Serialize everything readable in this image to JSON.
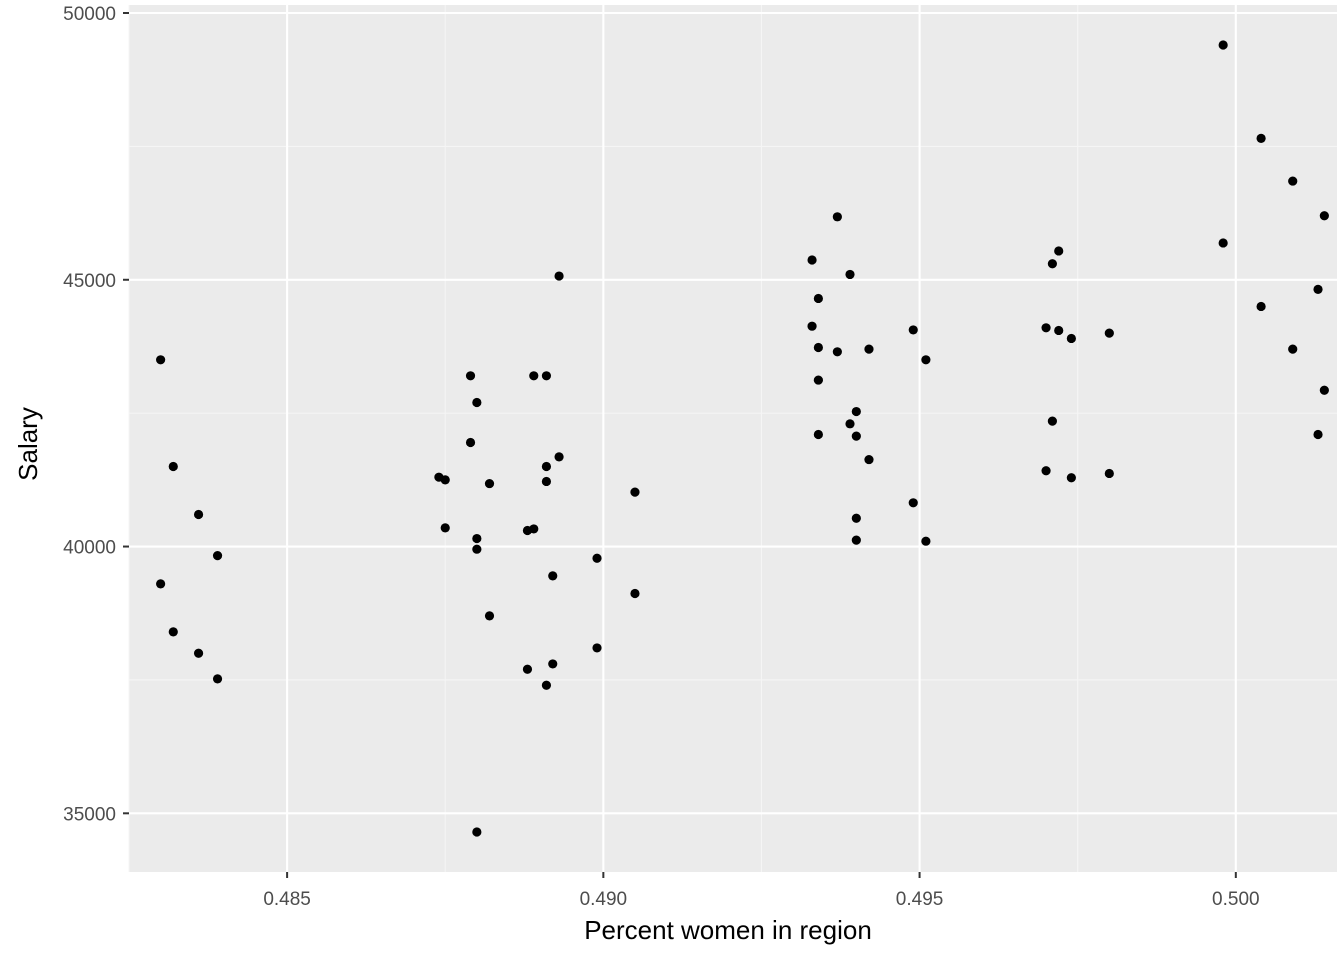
{
  "chart_data": {
    "type": "scatter",
    "title": "",
    "xlabel": "Percent women in region",
    "ylabel": "Salary",
    "xlim": [
      0.4825,
      0.5016
    ],
    "ylim": [
      33900,
      50150
    ],
    "x_ticks": [
      0.485,
      0.49,
      0.495,
      0.5
    ],
    "x_tick_labels": [
      "0.485",
      "0.490",
      "0.495",
      "0.500"
    ],
    "y_ticks": [
      35000,
      40000,
      45000,
      50000
    ],
    "y_tick_labels": [
      "35000",
      "40000",
      "45000",
      "50000"
    ],
    "grid": true,
    "legend": "none",
    "colors": {
      "panel": "#ebebeb",
      "grid_major": "#ffffff",
      "grid_minor": "#f5f5f5",
      "point": "#000000",
      "tick_label": "#4d4d4d",
      "tick_mark": "#333333"
    },
    "points": [
      {
        "x": 0.483,
        "y": 43500
      },
      {
        "x": 0.4832,
        "y": 41500
      },
      {
        "x": 0.4836,
        "y": 40600
      },
      {
        "x": 0.4839,
        "y": 39830
      },
      {
        "x": 0.483,
        "y": 39300
      },
      {
        "x": 0.4832,
        "y": 38400
      },
      {
        "x": 0.4836,
        "y": 38000
      },
      {
        "x": 0.4839,
        "y": 37520
      },
      {
        "x": 0.4874,
        "y": 41300
      },
      {
        "x": 0.4875,
        "y": 41250
      },
      {
        "x": 0.4875,
        "y": 40350
      },
      {
        "x": 0.4879,
        "y": 43200
      },
      {
        "x": 0.488,
        "y": 42700
      },
      {
        "x": 0.4879,
        "y": 41950
      },
      {
        "x": 0.488,
        "y": 40150
      },
      {
        "x": 0.488,
        "y": 39950
      },
      {
        "x": 0.488,
        "y": 34650
      },
      {
        "x": 0.4882,
        "y": 41180
      },
      {
        "x": 0.4882,
        "y": 38700
      },
      {
        "x": 0.4888,
        "y": 40300
      },
      {
        "x": 0.4889,
        "y": 40330
      },
      {
        "x": 0.4888,
        "y": 37700
      },
      {
        "x": 0.4889,
        "y": 43200
      },
      {
        "x": 0.4891,
        "y": 43200
      },
      {
        "x": 0.4891,
        "y": 41500
      },
      {
        "x": 0.4891,
        "y": 41220
      },
      {
        "x": 0.4891,
        "y": 37400
      },
      {
        "x": 0.4893,
        "y": 45070
      },
      {
        "x": 0.4893,
        "y": 41680
      },
      {
        "x": 0.4892,
        "y": 39450
      },
      {
        "x": 0.4892,
        "y": 37800
      },
      {
        "x": 0.4899,
        "y": 39780
      },
      {
        "x": 0.4899,
        "y": 38100
      },
      {
        "x": 0.4905,
        "y": 41020
      },
      {
        "x": 0.4905,
        "y": 39120
      },
      {
        "x": 0.4933,
        "y": 45370
      },
      {
        "x": 0.4934,
        "y": 44650
      },
      {
        "x": 0.4933,
        "y": 44130
      },
      {
        "x": 0.4934,
        "y": 43730
      },
      {
        "x": 0.4934,
        "y": 43120
      },
      {
        "x": 0.4934,
        "y": 42100
      },
      {
        "x": 0.4937,
        "y": 46180
      },
      {
        "x": 0.4937,
        "y": 43650
      },
      {
        "x": 0.4939,
        "y": 45100
      },
      {
        "x": 0.4939,
        "y": 42300
      },
      {
        "x": 0.494,
        "y": 42530
      },
      {
        "x": 0.494,
        "y": 42070
      },
      {
        "x": 0.494,
        "y": 40530
      },
      {
        "x": 0.494,
        "y": 40120
      },
      {
        "x": 0.4942,
        "y": 43700
      },
      {
        "x": 0.4942,
        "y": 41630
      },
      {
        "x": 0.4949,
        "y": 44060
      },
      {
        "x": 0.4949,
        "y": 40820
      },
      {
        "x": 0.4951,
        "y": 43500
      },
      {
        "x": 0.4951,
        "y": 40100
      },
      {
        "x": 0.497,
        "y": 44100
      },
      {
        "x": 0.497,
        "y": 41420
      },
      {
        "x": 0.4971,
        "y": 45300
      },
      {
        "x": 0.4971,
        "y": 42350
      },
      {
        "x": 0.4972,
        "y": 45540
      },
      {
        "x": 0.4972,
        "y": 44050
      },
      {
        "x": 0.4974,
        "y": 43900
      },
      {
        "x": 0.4974,
        "y": 41290
      },
      {
        "x": 0.498,
        "y": 44000
      },
      {
        "x": 0.498,
        "y": 41370
      },
      {
        "x": 0.4998,
        "y": 49400
      },
      {
        "x": 0.4998,
        "y": 45690
      },
      {
        "x": 0.5004,
        "y": 47650
      },
      {
        "x": 0.5004,
        "y": 44500
      },
      {
        "x": 0.5009,
        "y": 46850
      },
      {
        "x": 0.5009,
        "y": 43700
      },
      {
        "x": 0.5013,
        "y": 44820
      },
      {
        "x": 0.5013,
        "y": 42100
      },
      {
        "x": 0.5014,
        "y": 46200
      },
      {
        "x": 0.5014,
        "y": 42930
      }
    ]
  }
}
